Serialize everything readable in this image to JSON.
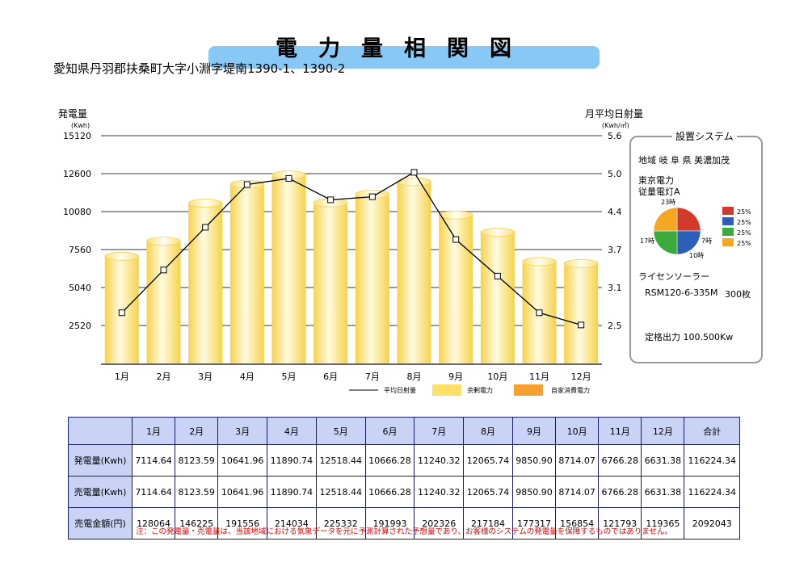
{
  "title": "電力量相関図",
  "address": "愛知県丹羽郡扶桑町大字小淵字堤南1390-1、1390-2",
  "chart_data": {
    "type": "bar",
    "categories": [
      "1月",
      "2月",
      "3月",
      "4月",
      "5月",
      "6月",
      "7月",
      "8月",
      "9月",
      "10月",
      "11月",
      "12月"
    ],
    "series": [
      {
        "name": "余剰電力",
        "type": "bar",
        "values": [
          7114.64,
          8123.59,
          10641.96,
          11890.74,
          12518.44,
          10666.28,
          11240.32,
          12065.74,
          9850.9,
          8714.07,
          6766.28,
          6631.38
        ]
      },
      {
        "name": "平均日射量",
        "type": "line",
        "axis": "right",
        "values": [
          2.7,
          3.4,
          4.1,
          4.8,
          4.9,
          4.55,
          4.6,
          5.0,
          3.9,
          3.3,
          2.7,
          2.5
        ]
      },
      {
        "name": "自家消費電力",
        "type": "bar",
        "values": [
          0,
          0,
          0,
          0,
          0,
          0,
          0,
          0,
          0,
          0,
          0,
          0
        ]
      }
    ],
    "ylabel": "発電量",
    "yunit": "(Kwh)",
    "yticks": [
      "15120",
      "12600",
      "10080",
      "7560",
      "5040",
      "2520"
    ],
    "ylim": [
      0,
      15120
    ],
    "y2label": "月平均日射量",
    "y2unit": "(Kwh/㎡)",
    "y2ticks": [
      "5.6",
      "5.0",
      "4.4",
      "3.7",
      "3.1",
      "2.5"
    ],
    "y2lim": [
      1.87,
      5.6
    ],
    "grid": true,
    "legend_position": "bottom",
    "colors": {
      "bar": "#fce06a",
      "self": "#f5a030",
      "line": "#000000"
    }
  },
  "system": {
    "heading": "設置システム",
    "region": "地域 岐 阜 県 美濃加茂",
    "company": "東京電力",
    "plan": "従量電灯A",
    "pie_labels": [
      "23時",
      "7時",
      "10時",
      "17時"
    ],
    "pie_legend": [
      {
        "label": "25%",
        "color": "#d23a2c"
      },
      {
        "label": "25%",
        "color": "#2c5fb8"
      },
      {
        "label": "25%",
        "color": "#3aaa3a"
      },
      {
        "label": "25%",
        "color": "#f5a623"
      }
    ],
    "maker": "ライセンソーラー",
    "model": "RSM120-6-335M",
    "count": "300枚",
    "output": "定格出力 100.500Kw"
  },
  "table": {
    "headers": [
      "1月",
      "2月",
      "3月",
      "4月",
      "5月",
      "6月",
      "7月",
      "8月",
      "9月",
      "10月",
      "11月",
      "12月",
      "合計"
    ],
    "rows": [
      {
        "label": "発電量(Kwh)",
        "values": [
          "7114.64",
          "8123.59",
          "10641.96",
          "11890.74",
          "12518.44",
          "10666.28",
          "11240.32",
          "12065.74",
          "9850.90",
          "8714.07",
          "6766.28",
          "6631.38",
          "116224.34"
        ]
      },
      {
        "label": "売電量(Kwh)",
        "values": [
          "7114.64",
          "8123.59",
          "10641.96",
          "11890.74",
          "12518.44",
          "10666.28",
          "11240.32",
          "12065.74",
          "9850.90",
          "8714.07",
          "6766.28",
          "6631.38",
          "116224.34"
        ]
      },
      {
        "label": "売電金額(円)",
        "values": [
          "128064",
          "146225",
          "191556",
          "214034",
          "225332",
          "191993",
          "202326",
          "217184",
          "177317",
          "156854",
          "121793",
          "119365",
          "2092043"
        ]
      }
    ]
  },
  "note": "注：この発電量・売電量は、当該地域における気象データを元に予測計算された予想量であり、お客様のシステムの発電量を保障するものではありません。"
}
